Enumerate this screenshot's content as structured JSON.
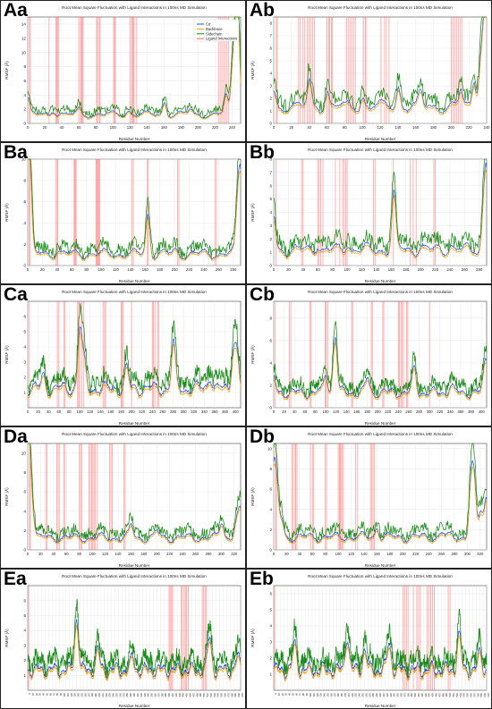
{
  "figure": {
    "panel_labels": [
      "Aa",
      "Ab",
      "Ba",
      "Bb",
      "Ca",
      "Cb",
      "Da",
      "Db",
      "Ea",
      "Eb"
    ]
  },
  "chart_data": [
    {
      "id": "Aa",
      "type": "line",
      "title": "Root Mean Square Fluctuation with Ligand Interactions in 100ns MD Simulation",
      "xlabel": "Residue Number",
      "ylabel": "RMSF (Å)",
      "xlim": [
        0,
        250
      ],
      "ylim": [
        0,
        15
      ],
      "xticks": [
        0,
        20,
        40,
        60,
        80,
        100,
        120,
        140,
        160,
        180,
        200,
        220,
        240
      ],
      "yticks": [
        0,
        2,
        4,
        6,
        8,
        10,
        12,
        14
      ],
      "legend": {
        "position": "top-right",
        "entries": [
          "Cα",
          "Backbone",
          "Sidechain",
          "Ligand Interactions"
        ]
      },
      "colors": {
        "ca": "#1f4fd8",
        "backbone": "#ff9900",
        "sidechain": "#1a8a1a",
        "ligand": "#ff6666"
      },
      "ligand_residues": [
        2,
        3,
        25,
        33,
        34,
        35,
        36,
        60,
        62,
        63,
        64,
        65,
        81,
        82,
        84,
        85,
        101,
        102,
        103,
        120,
        122,
        123,
        124,
        125,
        128,
        224,
        226,
        228,
        230,
        232,
        234,
        236
      ],
      "profile": {
        "n": 250,
        "base": 1.5,
        "peaks": [
          [
            0,
            2.5
          ],
          [
            30,
            0.9
          ],
          [
            60,
            0.8
          ],
          [
            118,
            0.7
          ],
          [
            160,
            2.0
          ],
          [
            190,
            0.8
          ],
          [
            232,
            3.0
          ],
          [
            240,
            8.0
          ],
          [
            244,
            11.0
          ],
          [
            246,
            12.5
          ]
        ]
      }
    },
    {
      "id": "Ab",
      "type": "line",
      "title": "Root Mean Square Fluctuation with Ligand Interactions in 100ns MD Simulation",
      "xlabel": "Residue Number",
      "ylabel": "RMSF (Å)",
      "xlim": [
        0,
        240
      ],
      "ylim": [
        0,
        8.5
      ],
      "xticks": [
        0,
        20,
        40,
        60,
        80,
        100,
        120,
        140,
        160,
        180,
        200,
        220,
        240
      ],
      "yticks": [
        0,
        1,
        2,
        3,
        4,
        5,
        6,
        7,
        8
      ],
      "colors": {
        "ca": "#1f4fd8",
        "backbone": "#ff9900",
        "sidechain": "#1a8a1a",
        "ligand": "#ff6666"
      },
      "ligand_residues": [
        3,
        4,
        28,
        30,
        33,
        35,
        38,
        40,
        42,
        44,
        46,
        60,
        62,
        63,
        65,
        66,
        82,
        84,
        86,
        88,
        90,
        92,
        101,
        103,
        104,
        121,
        125,
        127,
        130,
        200,
        202,
        204,
        206,
        208,
        210,
        212
      ],
      "profile": {
        "n": 240,
        "base": 1.6,
        "peaks": [
          [
            0,
            1.5
          ],
          [
            40,
            2.3
          ],
          [
            60,
            1.5
          ],
          [
            100,
            1.0
          ],
          [
            140,
            1.9
          ],
          [
            165,
            1.2
          ],
          [
            210,
            1.5
          ],
          [
            225,
            2.5
          ],
          [
            232,
            4.0
          ],
          [
            236,
            6.0
          ],
          [
            239,
            7.5
          ]
        ]
      }
    },
    {
      "id": "Ba",
      "type": "line",
      "title": "Root Mean Square Fluctuation with Ligand Interactions in 100ns MD Simulation",
      "xlabel": "Residue Number",
      "ylabel": "RMSF (Å)",
      "xlim": [
        0,
        290
      ],
      "ylim": [
        0,
        10
      ],
      "xticks": [
        0,
        20,
        40,
        60,
        80,
        100,
        120,
        140,
        160,
        180,
        200,
        220,
        240,
        260,
        280
      ],
      "yticks": [
        0,
        2,
        4,
        6,
        8,
        10
      ],
      "colors": {
        "ca": "#1f4fd8",
        "backbone": "#ff9900",
        "sidechain": "#1a8a1a",
        "ligand": "#ff6666"
      },
      "ligand_residues": [
        2,
        3,
        38,
        40,
        41,
        63,
        64,
        65,
        66,
        93,
        94,
        95,
        96,
        97,
        98,
        142,
        144,
        163,
        164,
        204,
        206,
        255,
        257
      ],
      "profile": {
        "n": 290,
        "base": 1.3,
        "peaks": [
          [
            0,
            8.0
          ],
          [
            3,
            7.5
          ],
          [
            40,
            0.5
          ],
          [
            163,
            4.5
          ],
          [
            200,
            0.5
          ],
          [
            285,
            5.0
          ],
          [
            289,
            8.0
          ]
        ]
      }
    },
    {
      "id": "Bb",
      "type": "line",
      "title": "Root Mean Square Fluctuation with Ligand Interactions in 100ns MD Simulation",
      "xlabel": "Residue Number",
      "ylabel": "RMSF (Å)",
      "xlim": [
        0,
        290
      ],
      "ylim": [
        0,
        8
      ],
      "xticks": [
        0,
        20,
        40,
        60,
        80,
        100,
        120,
        140,
        160,
        180,
        200,
        220,
        240,
        260,
        280
      ],
      "yticks": [
        0,
        1,
        2,
        3,
        4,
        5,
        6,
        7,
        8
      ],
      "colors": {
        "ca": "#1f4fd8",
        "backbone": "#ff9900",
        "sidechain": "#1a8a1a",
        "ligand": "#ff6666"
      },
      "ligand_residues": [
        3,
        38,
        40,
        60,
        62,
        64,
        67,
        84,
        90,
        94,
        96,
        98,
        100,
        136,
        138,
        163,
        186,
        190,
        194,
        218,
        220
      ],
      "profile": {
        "n": 290,
        "base": 1.4,
        "peaks": [
          [
            0,
            3.0
          ],
          [
            60,
            0.6
          ],
          [
            100,
            0.6
          ],
          [
            163,
            5.0
          ],
          [
            200,
            0.4
          ],
          [
            240,
            0.4
          ],
          [
            285,
            3.5
          ],
          [
            289,
            6.5
          ]
        ]
      }
    },
    {
      "id": "Ca",
      "type": "line",
      "title": "Root Mean Square Fluctuation with Ligand Interactions in 100ns MD Simulation",
      "xlabel": "Residue Number",
      "ylabel": "RMSF (Å)",
      "xlim": [
        0,
        410
      ],
      "ylim": [
        0,
        7
      ],
      "xticks": [
        0,
        20,
        40,
        60,
        80,
        100,
        120,
        140,
        160,
        180,
        200,
        220,
        240,
        260,
        280,
        300,
        320,
        340,
        360,
        380,
        400
      ],
      "yticks": [
        1,
        2,
        3,
        4,
        5,
        6
      ],
      "colors": {
        "ca": "#1f4fd8",
        "backbone": "#ff9900",
        "sidechain": "#1a8a1a",
        "ligand": "#ff6666"
      },
      "ligand_residues": [
        3,
        57,
        60,
        70,
        72,
        96,
        98,
        100,
        104,
        108,
        145,
        148,
        150,
        180,
        182,
        184,
        200,
        240,
        242,
        245,
        250,
        252
      ],
      "profile": {
        "n": 410,
        "base": 1.5,
        "peaks": [
          [
            30,
            1.0
          ],
          [
            100,
            4.6
          ],
          [
            108,
            2.0
          ],
          [
            190,
            1.5
          ],
          [
            280,
            3.5
          ],
          [
            350,
            1.0
          ],
          [
            395,
            3.0
          ],
          [
            402,
            2.5
          ]
        ]
      }
    },
    {
      "id": "Cb",
      "type": "line",
      "title": "Root Mean Square Fluctuation with Ligand Interactions in 100ns MD Simulation",
      "xlabel": "Residue Number",
      "ylabel": "RMSF (Å)",
      "xlim": [
        0,
        410
      ],
      "ylim": [
        0,
        9.5
      ],
      "xticks": [
        0,
        20,
        40,
        60,
        80,
        100,
        120,
        140,
        160,
        180,
        200,
        220,
        240,
        260,
        280,
        300,
        320,
        340,
        360,
        380,
        400
      ],
      "yticks": [
        0,
        2,
        4,
        6,
        8
      ],
      "colors": {
        "ca": "#1f4fd8",
        "backbone": "#ff9900",
        "sidechain": "#1a8a1a",
        "ligand": "#ff6666"
      },
      "ligand_residues": [
        3,
        30,
        33,
        70,
        72,
        99,
        101,
        104,
        150,
        152,
        188,
        190,
        210,
        212,
        240,
        242,
        245,
        247,
        250,
        256,
        258,
        300
      ],
      "profile": {
        "n": 410,
        "base": 1.6,
        "peaks": [
          [
            0,
            1.5
          ],
          [
            100,
            2.0
          ],
          [
            118,
            6.0
          ],
          [
            180,
            1.5
          ],
          [
            270,
            2.5
          ],
          [
            340,
            0.8
          ],
          [
            405,
            1.5
          ],
          [
            409,
            2.5
          ]
        ]
      }
    },
    {
      "id": "Da",
      "type": "line",
      "title": "Root Mean Square Fluctuation with Ligand Interactions in 100ns MD Simulation",
      "xlabel": "Residue Number",
      "ylabel": "RMSF (Å)",
      "xlim": [
        0,
        330
      ],
      "ylim": [
        0,
        11
      ],
      "xticks": [
        0,
        20,
        40,
        60,
        80,
        100,
        120,
        140,
        160,
        180,
        200,
        220,
        240,
        260,
        280,
        300,
        320
      ],
      "yticks": [
        0,
        2,
        4,
        6,
        8,
        10
      ],
      "colors": {
        "ca": "#1f4fd8",
        "backbone": "#ff9900",
        "sidechain": "#1a8a1a",
        "ligand": "#ff6666"
      },
      "ligand_residues": [
        3,
        4,
        28,
        30,
        45,
        47,
        49,
        56,
        58,
        80,
        82,
        84,
        95,
        97,
        99,
        101,
        103,
        105,
        108,
        127,
        129,
        131,
        149,
        151
      ],
      "profile": {
        "n": 330,
        "base": 1.5,
        "peaks": [
          [
            0,
            9.0
          ],
          [
            3,
            7.0
          ],
          [
            8,
            2.5
          ],
          [
            160,
            1.5
          ],
          [
            200,
            0.8
          ],
          [
            300,
            2.0
          ],
          [
            322,
            2.0
          ],
          [
            328,
            3.0
          ]
        ]
      }
    },
    {
      "id": "Db",
      "type": "line",
      "title": "Root Mean Square Fluctuation with Ligand Interactions in 100ns MD Simulation",
      "xlabel": "Residue Number",
      "ylabel": "RMSF (Å)",
      "xlim": [
        0,
        330
      ],
      "ylim": [
        0,
        10.5
      ],
      "xticks": [
        0,
        20,
        40,
        60,
        80,
        100,
        120,
        140,
        160,
        180,
        200,
        220,
        240,
        260,
        280,
        300,
        320
      ],
      "yticks": [
        0,
        2,
        4,
        6,
        8,
        10
      ],
      "colors": {
        "ca": "#1f4fd8",
        "backbone": "#ff9900",
        "sidechain": "#1a8a1a",
        "ligand": "#ff6666"
      },
      "ligand_residues": [
        3,
        4,
        28,
        30,
        33,
        34,
        36,
        57,
        60,
        62,
        80,
        82,
        100,
        102,
        103,
        104,
        106,
        108,
        127,
        130,
        150,
        152,
        154,
        156
      ],
      "profile": {
        "n": 330,
        "base": 1.5,
        "peaks": [
          [
            0,
            7.0
          ],
          [
            5,
            5.0
          ],
          [
            12,
            2.0
          ],
          [
            160,
            1.2
          ],
          [
            260,
            0.6
          ],
          [
            305,
            6.5
          ],
          [
            310,
            5.5
          ],
          [
            320,
            3.0
          ],
          [
            328,
            4.5
          ]
        ]
      }
    },
    {
      "id": "Ea",
      "type": "line",
      "title": "Root Mean Square Fluctuation with Ligand Interactions in 100ns MD Simulation",
      "xlabel": "Residue Number",
      "ylabel": "RMSF (Å)",
      "xlim": [
        0,
        610
      ],
      "ylim": [
        0,
        7
      ],
      "yticks": [
        1,
        2,
        3,
        4,
        5,
        6
      ],
      "colors": {
        "ca": "#1f4fd8",
        "backbone": "#ff9900",
        "sidechain": "#1a8a1a",
        "ligand": "#ff6666"
      },
      "ligand_residues": [
        3,
        405,
        408,
        412,
        415,
        440,
        443,
        448,
        452,
        455,
        460,
        500,
        504,
        508,
        512
      ],
      "profile": {
        "n": 610,
        "base": 1.6,
        "peaks": [
          [
            140,
            4.0
          ],
          [
            200,
            1.5
          ],
          [
            300,
            1.0
          ],
          [
            520,
            2.5
          ],
          [
            600,
            1.0
          ]
        ]
      }
    },
    {
      "id": "Eb",
      "type": "line",
      "title": "Root Mean Square Fluctuation with Ligand Interactions in 100ns MD Simulation",
      "xlabel": "Residue Number",
      "ylabel": "RMSF (Å)",
      "xlim": [
        0,
        610
      ],
      "ylim": [
        0,
        6.5
      ],
      "yticks": [
        1,
        2,
        3,
        4,
        5,
        6
      ],
      "colors": {
        "ca": "#1f4fd8",
        "backbone": "#ff9900",
        "sidechain": "#1a8a1a",
        "ligand": "#ff6666"
      },
      "ligand_residues": [
        3,
        370,
        375,
        380,
        385,
        400,
        410,
        415,
        420,
        440,
        445,
        450,
        455,
        460,
        500,
        505
      ],
      "profile": {
        "n": 610,
        "base": 1.5,
        "peaks": [
          [
            60,
            1.8
          ],
          [
            210,
            2.5
          ],
          [
            260,
            1.5
          ],
          [
            330,
            2.0
          ],
          [
            530,
            2.5
          ],
          [
            590,
            1.2
          ]
        ]
      }
    }
  ]
}
